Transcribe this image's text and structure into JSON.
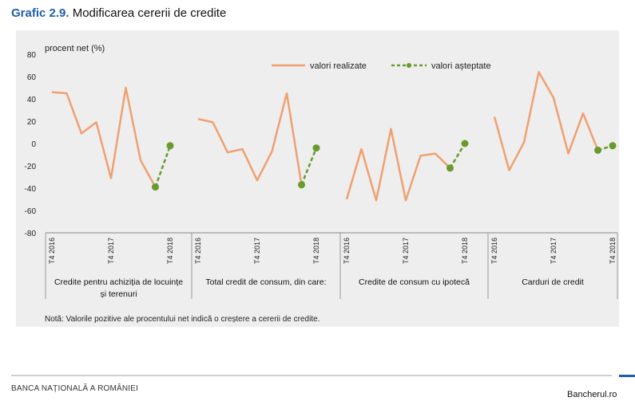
{
  "title": {
    "number": "Grafic 2.9.",
    "text": "Modificarea cererii de credite"
  },
  "note": "Notă: Valorile pozitive ale procentului net indică o creștere a cererii de credite.",
  "footer": {
    "left": "BANCA NAȚIONALĂ A ROMÂNIEI",
    "right": "Bancherul.ro"
  },
  "colors": {
    "realized": "#f0a070",
    "expected": "#6a9a2e",
    "panel": "#eeeeee"
  },
  "chart_data": {
    "type": "line",
    "ylabel": "procent net (%)",
    "ylim": [
      -80,
      80
    ],
    "yticks": [
      80,
      60,
      40,
      20,
      0,
      -20,
      -40,
      -60,
      -80
    ],
    "grid": false,
    "legend_placement": "top-center",
    "legend": [
      "valori realizate",
      "valori așteptate"
    ],
    "groups": [
      {
        "label_lines": [
          "Credite pentru achiziția de locuințe",
          "și terenuri"
        ],
        "tick_labels": [
          "T4 2016",
          "T4 2017",
          "T4 2018"
        ],
        "realized": [
          46,
          45,
          9,
          19,
          -31,
          50,
          -15,
          -39
        ],
        "expected": [
          -39,
          -2
        ]
      },
      {
        "label_lines": [
          "Total credit de consum, din care:"
        ],
        "tick_labels": [
          "T4 2016",
          "T4 2017",
          "T4 2018"
        ],
        "realized": [
          22,
          19,
          -8,
          -5,
          -33,
          -7,
          45,
          -37
        ],
        "expected": [
          -37,
          -4
        ]
      },
      {
        "label_lines": [
          "Credite de consum cu ipotecă"
        ],
        "tick_labels": [
          "T4 2016",
          "T4 2017",
          "T4 2018"
        ],
        "realized": [
          -50,
          -5,
          -51,
          13,
          -51,
          -11,
          -9,
          -22
        ],
        "expected": [
          -22,
          0
        ]
      },
      {
        "label_lines": [
          "Carduri de credit"
        ],
        "tick_labels": [
          "T4 2016",
          "T4 2017",
          "T4 2018"
        ],
        "realized": [
          24,
          -24,
          1,
          64,
          41,
          -9,
          27,
          -6
        ],
        "expected": [
          -6,
          -2
        ]
      }
    ]
  }
}
